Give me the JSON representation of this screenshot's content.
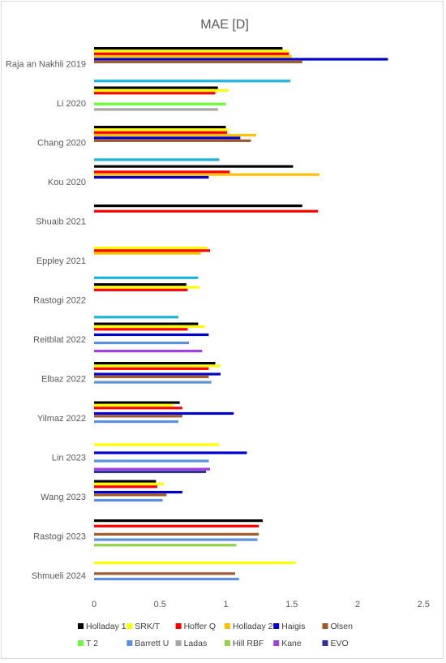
{
  "chart_data": {
    "type": "bar",
    "orientation": "horizontal",
    "title": "MAE [D]",
    "xlabel": "",
    "ylabel": "",
    "xlim": [
      0,
      2.5
    ],
    "xticks": [
      "0",
      "0.5",
      "1",
      "1.5",
      "2",
      "2.5"
    ],
    "grid": false,
    "legend_position": "bottom",
    "categories": [
      "Raja an Nakhli 2019",
      "Li 2020",
      "Chang 2020",
      "Kou 2020",
      "Shuaib 2021",
      "Eppley 2021",
      "Rastogi 2022",
      "Reitblat 2022",
      "Elbaz 2022",
      "Yilmaz 2022",
      "Lin 2023",
      "Wang 2023",
      "Rastogi 2023",
      "Shmueli 2024"
    ],
    "series": [
      {
        "name": "Holladay 1",
        "color": "#000000",
        "values": [
          1.43,
          0.94,
          1.0,
          1.51,
          1.58,
          null,
          0.7,
          0.79,
          0.92,
          0.65,
          null,
          0.47,
          1.28,
          null
        ]
      },
      {
        "name": "SRK/T",
        "color": "#ffff00",
        "values": [
          1.48,
          1.02,
          1.02,
          null,
          null,
          0.86,
          0.8,
          0.84,
          0.96,
          0.6,
          0.95,
          0.53,
          null,
          1.53
        ]
      },
      {
        "name": "Hoffer Q",
        "color": "#ff0000",
        "values": [
          1.48,
          0.92,
          1.01,
          1.03,
          1.7,
          0.88,
          0.71,
          0.71,
          0.87,
          0.67,
          null,
          0.48,
          1.25,
          null
        ]
      },
      {
        "name": "Holladay 2",
        "color": "#ffc000",
        "values": [
          1.5,
          null,
          1.23,
          1.71,
          null,
          0.81,
          null,
          null,
          null,
          null,
          null,
          null,
          null,
          null
        ]
      },
      {
        "name": "Haigis",
        "color": "#0000cc",
        "values": [
          2.23,
          null,
          1.11,
          0.87,
          null,
          null,
          null,
          0.87,
          0.96,
          1.06,
          1.16,
          0.67,
          null,
          null
        ]
      },
      {
        "name": "Olsen",
        "color": "#a05a2c",
        "values": [
          1.58,
          null,
          1.19,
          null,
          null,
          null,
          null,
          null,
          0.87,
          0.67,
          null,
          0.55,
          1.25,
          1.07
        ]
      },
      {
        "name": "T 2",
        "color": "#66ff33",
        "values": [
          null,
          1.0,
          null,
          null,
          null,
          null,
          null,
          null,
          null,
          null,
          null,
          null,
          null,
          null
        ]
      },
      {
        "name": "Barrett U",
        "color": "#5b8fe0",
        "values": [
          null,
          null,
          null,
          null,
          null,
          null,
          null,
          0.72,
          0.89,
          0.64,
          0.87,
          0.52,
          1.24,
          1.1
        ]
      },
      {
        "name": "Ladas",
        "color": "#a6a6a6",
        "values": [
          null,
          0.94,
          null,
          null,
          null,
          null,
          null,
          null,
          null,
          null,
          null,
          null,
          null,
          null
        ]
      },
      {
        "name": "Hill RBF",
        "color": "#8fd14f",
        "values": [
          null,
          null,
          null,
          null,
          null,
          null,
          null,
          null,
          null,
          null,
          null,
          null,
          1.08,
          null
        ]
      },
      {
        "name": "Kane",
        "color": "#a040e0",
        "values": [
          null,
          null,
          null,
          null,
          null,
          null,
          null,
          0.82,
          null,
          null,
          0.88,
          null,
          null,
          null
        ]
      },
      {
        "name": "EVO",
        "color": "#3030a0",
        "values": [
          null,
          null,
          null,
          null,
          null,
          null,
          null,
          null,
          null,
          null,
          0.85,
          null,
          null,
          null
        ]
      },
      {
        "name": "",
        "color": "#1fb4d9",
        "values": [
          1.49,
          null,
          0.95,
          null,
          null,
          0.79,
          0.64,
          null,
          null,
          null,
          null,
          null,
          null,
          null
        ]
      }
    ]
  }
}
